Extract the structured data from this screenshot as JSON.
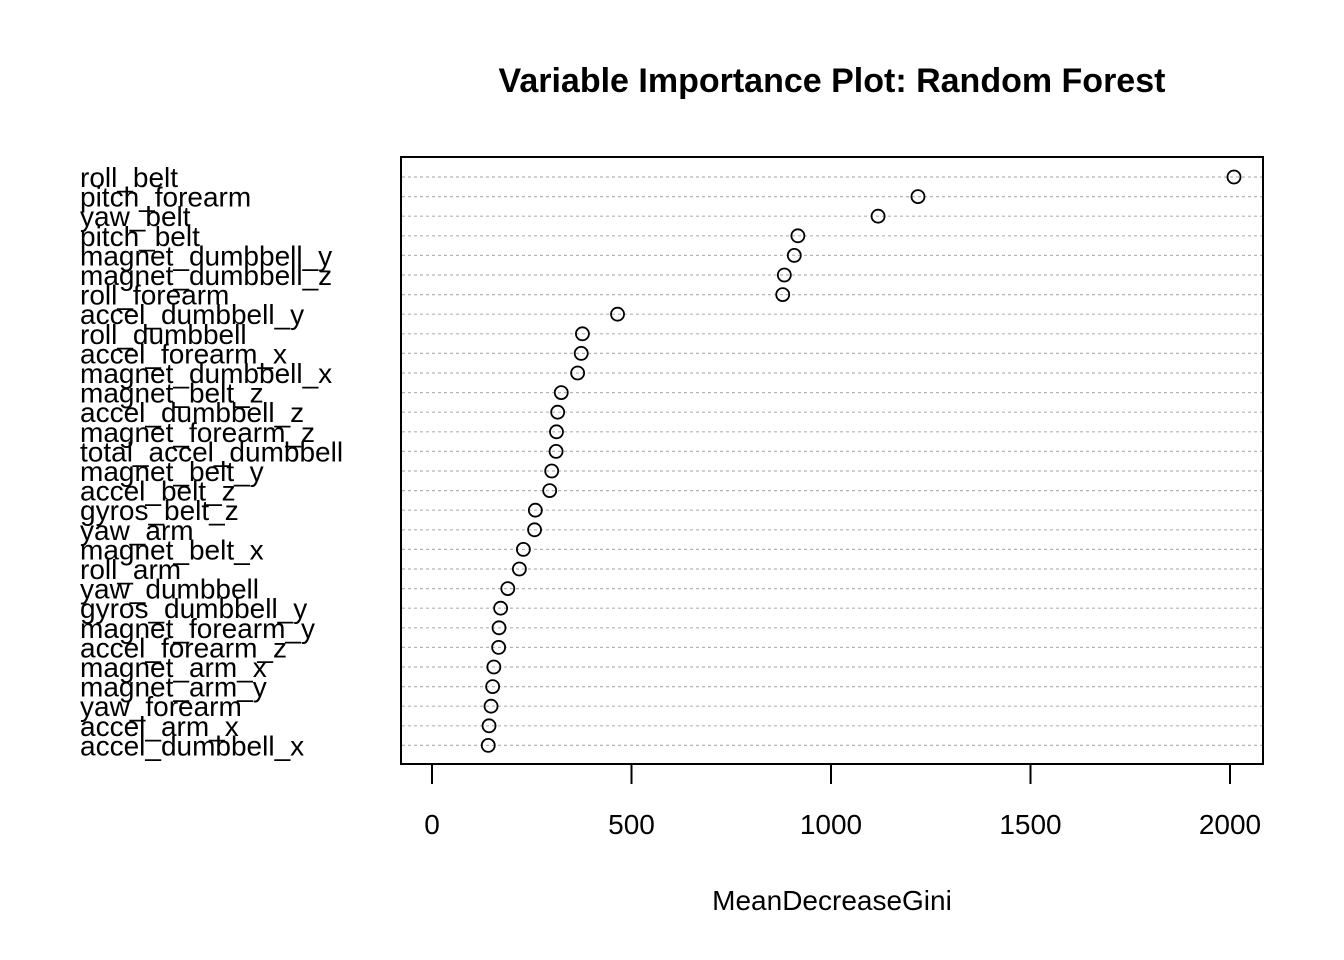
{
  "chart_data": {
    "type": "scatter",
    "title": "Variable Importance Plot: Random Forest",
    "xlabel": "MeanDecreaseGini",
    "ylabel": "",
    "xlim": [
      -80,
      2090
    ],
    "xticks": [
      0,
      500,
      1000,
      1500,
      2000
    ],
    "grid": "horizontal-dashed",
    "categories": [
      "roll_belt",
      "pitch_forearm",
      "yaw_belt",
      "pitch_belt",
      "magnet_dumbbell_y",
      "magnet_dumbbell_z",
      "roll_forearm",
      "accel_dumbbell_y",
      "roll_dumbbell",
      "accel_forearm_x",
      "magnet_dumbbell_x",
      "magnet_belt_z",
      "accel_dumbbell_z",
      "magnet_forearm_z",
      "total_accel_dumbbell",
      "magnet_belt_y",
      "accel_belt_z",
      "gyros_belt_z",
      "yaw_arm",
      "magnet_belt_x",
      "roll_arm",
      "yaw_dumbbell",
      "gyros_dumbbell_y",
      "magnet_forearm_y",
      "accel_forearm_z",
      "magnet_arm_x",
      "magnet_arm_y",
      "yaw_forearm",
      "accel_arm_x",
      "accel_dumbbell_x"
    ],
    "values": [
      2010,
      1218,
      1118,
      917,
      908,
      883,
      879,
      465,
      377,
      374,
      365,
      324,
      315,
      312,
      311,
      300,
      295,
      259,
      257,
      229,
      219,
      190,
      172,
      168,
      167,
      155,
      152,
      148,
      143,
      141
    ]
  }
}
